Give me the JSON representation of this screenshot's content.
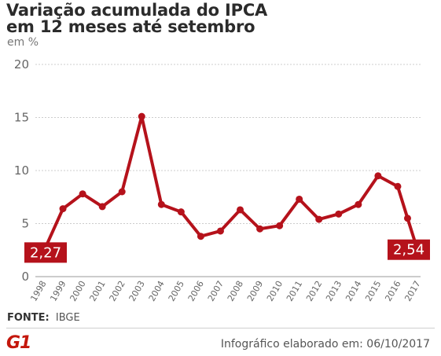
{
  "header": {
    "title_line1": "Variação acumulada do IPCA",
    "title_line2": "em 12 meses até setembro",
    "unit": "em %"
  },
  "footer": {
    "source_label": "FONTE:",
    "source_value": "IBGE",
    "logo_text": "G1",
    "credit": "Infográfico elaborado em: 06/10/2017"
  },
  "colors": {
    "series": "#b5121b",
    "grid": "#cccccc",
    "brand": "#c4170c"
  },
  "chart_data": {
    "type": "line",
    "title": "Variação acumulada do IPCA em 12 meses até setembro",
    "ylabel": "em %",
    "xlabel": "",
    "ylim": [
      0,
      20
    ],
    "yticks": [
      0,
      5,
      10,
      15,
      20
    ],
    "grid": true,
    "x": [
      "1998",
      "1999",
      "2000",
      "2001",
      "2002",
      "2003",
      "2004",
      "2005",
      "2006",
      "2007",
      "2008",
      "2009",
      "2010",
      "2011",
      "2012",
      "2013",
      "2014",
      "2015",
      "2016",
      "2017"
    ],
    "values": [
      2.27,
      6.4,
      7.8,
      6.6,
      8.0,
      15.1,
      6.8,
      6.1,
      3.8,
      4.3,
      6.3,
      4.5,
      4.8,
      7.3,
      5.4,
      5.9,
      6.8,
      9.5,
      8.5,
      2.54
    ],
    "extra_point": {
      "after": "2016",
      "value": 5.5
    },
    "callouts": [
      {
        "x": "1998",
        "label": "2,27"
      },
      {
        "x": "2017",
        "label": "2,54"
      }
    ]
  }
}
